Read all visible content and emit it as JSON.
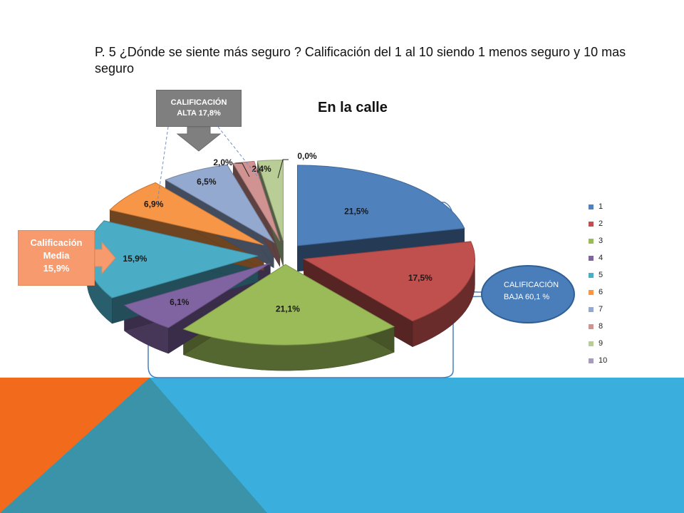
{
  "question": {
    "text": "P. 5 ¿Dónde se siente más seguro ? Calificación del 1 al 10 siendo 1 menos seguro y 10 mas seguro"
  },
  "chart_data": {
    "type": "pie",
    "title": "En la calle",
    "categories": [
      "1",
      "2",
      "3",
      "4",
      "5",
      "6",
      "7",
      "8",
      "9",
      "10"
    ],
    "values": [
      21.5,
      17.5,
      21.1,
      6.1,
      15.9,
      6.9,
      6.5,
      2.0,
      2.4,
      0.0
    ],
    "labels": [
      "21,5%",
      "17,5%",
      "21,1%",
      "6,1%",
      "15,9%",
      "6,9%",
      "6,5%",
      "2,0%",
      "2,4%",
      "0,0%"
    ],
    "colors": [
      "#4f81bd",
      "#c0504d",
      "#9bbb59",
      "#8064a2",
      "#4bacc6",
      "#f79646",
      "#93a9cf",
      "#d19392",
      "#b9cd96",
      "#a99bbd"
    ],
    "legend_position": "right",
    "exploded": true,
    "three_d": true
  },
  "callouts": {
    "high": {
      "line1": "CALIFICACIÓN",
      "line2": "ALTA 17,8%"
    },
    "media": {
      "line1": "Calificación",
      "line2": "Media",
      "line3": "15,9%"
    },
    "low": {
      "line1": "CALIFICACIÓN",
      "line2": "BAJA 60,1 %"
    }
  },
  "theme": {
    "band_blue": "#3aaedc",
    "band_orange": "#f26b1d",
    "band_teal": "#3a93a8"
  }
}
